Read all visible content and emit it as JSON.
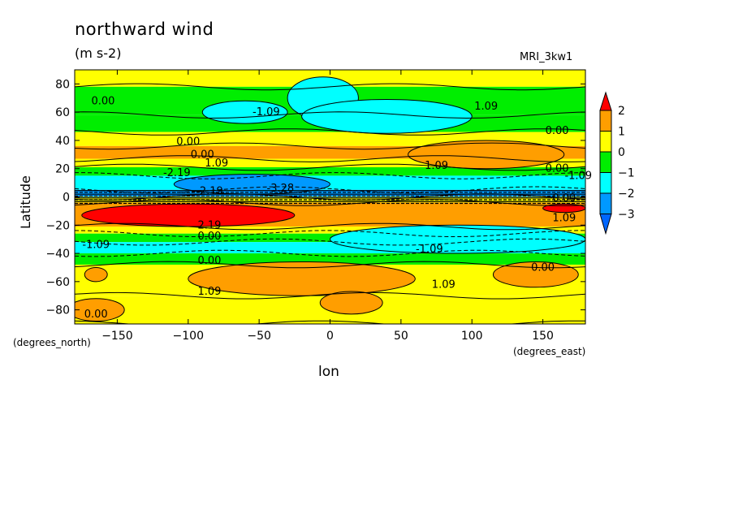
{
  "header": {
    "title": "northward wind",
    "units": "(m s-2)",
    "model": "MRI_3kw1"
  },
  "axes": {
    "ylabel": "Latitude",
    "xlabel": "lon",
    "y_unit_note": "(degrees_north)",
    "x_unit_note": "(degrees_east)"
  },
  "colors": {
    "red": "#ff0000",
    "orange": "#ff9e00",
    "yellow": "#ffff00",
    "green": "#00ee00",
    "cyan": "#00ffff",
    "blue": "#0099ff",
    "deepblue": "#0066ff"
  },
  "chart_data": {
    "type": "heatmap",
    "title": "northward wind",
    "subtitle": "(m s-2)",
    "xlabel": "lon",
    "ylabel": "Latitude",
    "xlim": [
      -180,
      180
    ],
    "ylim": [
      -90,
      90
    ],
    "xticks": [
      -150,
      -100,
      -50,
      0,
      50,
      100,
      150
    ],
    "yticks": [
      80,
      60,
      40,
      20,
      0,
      -20,
      -40,
      -60,
      -80
    ],
    "colorbar": {
      "labels": [
        "2",
        "1",
        "0",
        "-1",
        "-2",
        "-3"
      ],
      "bins": [
        {
          "range": "> 2",
          "color": "#ff0000"
        },
        {
          "range": "1 to 2",
          "color": "#ff9e00"
        },
        {
          "range": "0 to 1",
          "color": "#ffff00"
        },
        {
          "range": "-1 to 0",
          "color": "#00ee00"
        },
        {
          "range": "-2 to -1",
          "color": "#00ffff"
        },
        {
          "range": "-3 to -2",
          "color": "#0099ff"
        },
        {
          "range": "< -3",
          "color": "#0066ff"
        }
      ]
    },
    "bands": [
      {
        "lat": [
          78,
          90
        ],
        "color": "#ffff00"
      },
      {
        "lat": [
          58,
          78
        ],
        "color": "#00ee00"
      },
      {
        "lat": [
          46,
          58
        ],
        "color": "#00ee00"
      },
      {
        "lat": [
          36,
          46
        ],
        "color": "#ffff00"
      },
      {
        "lat": [
          27,
          36
        ],
        "color": "#ff9e00"
      },
      {
        "lat": [
          21,
          27
        ],
        "color": "#ffff00"
      },
      {
        "lat": [
          15,
          21
        ],
        "color": "#00ee00"
      },
      {
        "lat": [
          5,
          15
        ],
        "color": "#00ffff"
      },
      {
        "lat": [
          0,
          5
        ],
        "color": "#0099ff"
      },
      {
        "lat": [
          -4,
          0
        ],
        "color": "#ffff00"
      },
      {
        "lat": [
          -21,
          -4
        ],
        "color": "#ff9e00"
      },
      {
        "lat": [
          -26,
          -21
        ],
        "color": "#ffff00"
      },
      {
        "lat": [
          -32,
          -26
        ],
        "color": "#00ee00"
      },
      {
        "lat": [
          -40,
          -32
        ],
        "color": "#00ffff"
      },
      {
        "lat": [
          -48,
          -40
        ],
        "color": "#00ee00"
      },
      {
        "lat": [
          -70,
          -48
        ],
        "color": "#ffff00"
      },
      {
        "lat": [
          -90,
          -70
        ],
        "color": "#ffff00"
      }
    ],
    "blobs": [
      {
        "lon": 115,
        "lat": 32,
        "rlon": 28,
        "rlat": 6,
        "color": "#ff0000"
      },
      {
        "lon": 110,
        "lat": 30,
        "rlon": 55,
        "rlat": 10,
        "color": "#ff9e00"
      },
      {
        "lon": -55,
        "lat": 9,
        "rlon": 55,
        "rlat": 7,
        "color": "#0099ff"
      },
      {
        "lon": -100,
        "lat": -13,
        "rlon": 75,
        "rlat": 8,
        "color": "#ff0000"
      },
      {
        "lon": 165,
        "lat": -8,
        "rlon": 15,
        "rlat": 3,
        "color": "#ff0000"
      },
      {
        "lon": 120,
        "lat": -32,
        "rlon": 35,
        "rlat": 5,
        "color": "#0099ff"
      },
      {
        "lon": 90,
        "lat": -30,
        "rlon": 90,
        "rlat": 10,
        "color": "#00ffff"
      },
      {
        "lon": -5,
        "lat": 70,
        "rlon": 25,
        "rlat": 15,
        "color": "#00ffff"
      },
      {
        "lon": 40,
        "lat": 57,
        "rlon": 60,
        "rlat": 12,
        "color": "#00ffff"
      },
      {
        "lon": -60,
        "lat": 60,
        "rlon": 30,
        "rlat": 8,
        "color": "#00ffff"
      },
      {
        "lon": -20,
        "lat": -58,
        "rlon": 80,
        "rlat": 12,
        "color": "#ff9e00"
      },
      {
        "lon": 145,
        "lat": -55,
        "rlon": 30,
        "rlat": 9,
        "color": "#ff9e00"
      },
      {
        "lon": 15,
        "lat": -75,
        "rlon": 22,
        "rlat": 8,
        "color": "#ff9e00"
      },
      {
        "lon": -165,
        "lat": -80,
        "rlon": 20,
        "rlat": 8,
        "color": "#ff9e00"
      },
      {
        "lon": -165,
        "lat": -55,
        "rlon": 8,
        "rlat": 5,
        "color": "#ff9e00"
      }
    ],
    "contour_labels": [
      {
        "lon": -160,
        "lat": 68,
        "text": "0.00"
      },
      {
        "lon": -45,
        "lat": 60,
        "text": "-1.09"
      },
      {
        "lon": 110,
        "lat": 64,
        "text": "1.09"
      },
      {
        "lon": -100,
        "lat": 39,
        "text": "0.00"
      },
      {
        "lon": -90,
        "lat": 30,
        "text": "0.00"
      },
      {
        "lon": -80,
        "lat": 24,
        "text": "1.09"
      },
      {
        "lon": -108,
        "lat": 17,
        "text": "-2.19"
      },
      {
        "lon": 160,
        "lat": 47,
        "text": "0.00"
      },
      {
        "lon": 75,
        "lat": 22,
        "text": "1.09"
      },
      {
        "lon": 160,
        "lat": 20,
        "text": "0.00"
      },
      {
        "lon": 175,
        "lat": 15,
        "text": "-1.09"
      },
      {
        "lon": -35,
        "lat": 6,
        "text": "-3.28"
      },
      {
        "lon": -85,
        "lat": 4,
        "text": "-2.19"
      },
      {
        "lon": 165,
        "lat": -1,
        "text": "0.00"
      },
      {
        "lon": 165,
        "lat": -15,
        "text": "1.09"
      },
      {
        "lon": -85,
        "lat": -20,
        "text": "2.19"
      },
      {
        "lon": -85,
        "lat": -28,
        "text": "0.00"
      },
      {
        "lon": -165,
        "lat": -34,
        "text": "-1.09"
      },
      {
        "lon": 70,
        "lat": -37,
        "text": "-1.09"
      },
      {
        "lon": -85,
        "lat": -45,
        "text": "0.00"
      },
      {
        "lon": 150,
        "lat": -50,
        "text": "0.00"
      },
      {
        "lon": -85,
        "lat": -67,
        "text": "1.09"
      },
      {
        "lon": 80,
        "lat": -62,
        "text": "1.09"
      },
      {
        "lon": -165,
        "lat": -83,
        "text": "0.00"
      }
    ]
  }
}
